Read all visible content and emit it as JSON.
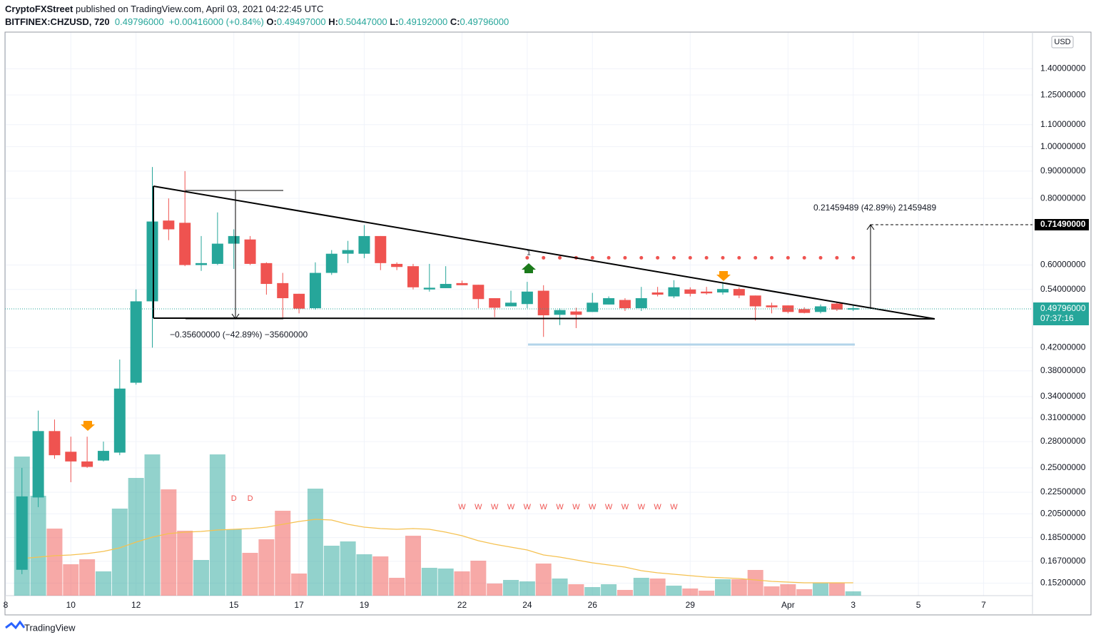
{
  "header": {
    "publisher": "CryptoFXStreet",
    "published": "published on TradingView.com, April 03, 2021 04:22:45 UTC",
    "symbol": "BITFINEX:CHZUSD, 720",
    "last": "0.49796000",
    "change": "+0.00416000 (+0.84%)",
    "o_label": "O:",
    "o": "0.49497000",
    "h_label": "H:",
    "h": "0.50447000",
    "l_label": "L:",
    "l": "0.49192000",
    "c_label": "C:",
    "c": "0.49796000"
  },
  "currency": "USD",
  "price_tags": {
    "target": "0.71490000",
    "last": "0.49796000",
    "countdown": "07:37:16"
  },
  "measures": {
    "down": "−0.35600000 (−42.89%) −35600000",
    "up": "0.21459489 (42.89%) 21459489"
  },
  "signals": {
    "d_labels": [
      "D",
      "D"
    ],
    "w_labels": [
      "W",
      "W",
      "W",
      "W",
      "W",
      "W",
      "W",
      "W",
      "W",
      "W",
      "W",
      "W",
      "W",
      "W"
    ],
    "dot_label": "1"
  },
  "footer": "TradingView",
  "chart_data": {
    "type": "candlestick",
    "x": [
      8.5,
      9,
      9.5,
      10,
      10.5,
      11,
      11.5,
      12,
      12.5,
      13,
      13.5,
      14,
      14.5,
      15,
      15.5,
      16,
      16.5,
      17,
      17.5,
      18,
      18.5,
      19,
      19.5,
      20,
      20.5,
      21,
      21.5,
      22,
      22.5,
      23,
      23.5,
      24,
      24.5,
      25,
      25.5,
      26,
      26.5,
      27,
      27.5,
      28,
      28.5,
      29,
      29.5,
      30,
      30.5,
      31,
      31.5,
      32,
      32.5,
      33,
      33.5,
      34
    ],
    "open": [
      0.161,
      0.22,
      0.293,
      0.268,
      0.257,
      0.258,
      0.267,
      0.361,
      0.513,
      0.727,
      0.72,
      0.6,
      0.603,
      0.658,
      0.67,
      0.605,
      0.555,
      0.53,
      0.498,
      0.58,
      0.63,
      0.63,
      0.68,
      0.603,
      0.597,
      0.54,
      0.543,
      0.555,
      0.551,
      0.52,
      0.502,
      0.507,
      0.537,
      0.484,
      0.491,
      0.49,
      0.506,
      0.516,
      0.498,
      0.533,
      0.524,
      0.54,
      0.535,
      0.533,
      0.541,
      0.526,
      0.504,
      0.504,
      0.496,
      0.49,
      0.508,
      0.49497
    ],
    "high": [
      0.25,
      0.32,
      0.308,
      0.286,
      0.286,
      0.28,
      0.399,
      0.54,
      0.916,
      0.8,
      0.9,
      0.68,
      0.753,
      0.7,
      0.68,
      0.607,
      0.58,
      0.53,
      0.607,
      0.64,
      0.666,
      0.713,
      0.68,
      0.607,
      0.603,
      0.603,
      0.597,
      0.561,
      0.551,
      0.52,
      0.537,
      0.558,
      0.55,
      0.498,
      0.499,
      0.532,
      0.524,
      0.52,
      0.546,
      0.546,
      0.562,
      0.545,
      0.546,
      0.558,
      0.545,
      0.526,
      0.51,
      0.504,
      0.5,
      0.506,
      0.511,
      0.50447
    ],
    "low": [
      0.158,
      0.211,
      0.26,
      0.235,
      0.25,
      0.257,
      0.264,
      0.358,
      0.42,
      0.668,
      0.597,
      0.585,
      0.6,
      0.59,
      0.6,
      0.528,
      0.478,
      0.487,
      0.495,
      0.575,
      0.605,
      0.618,
      0.587,
      0.587,
      0.54,
      0.535,
      0.543,
      0.55,
      0.498,
      0.479,
      0.502,
      0.498,
      0.44,
      0.463,
      0.457,
      0.49,
      0.506,
      0.492,
      0.492,
      0.524,
      0.52,
      0.524,
      0.528,
      0.528,
      0.52,
      0.472,
      0.487,
      0.487,
      0.487,
      0.487,
      0.492,
      0.49192
    ],
    "close": [
      0.221,
      0.293,
      0.264,
      0.257,
      0.251,
      0.269,
      0.352,
      0.513,
      0.724,
      0.7,
      0.6,
      0.605,
      0.658,
      0.68,
      0.603,
      0.553,
      0.52,
      0.497,
      0.58,
      0.63,
      0.64,
      0.68,
      0.605,
      0.595,
      0.545,
      0.544,
      0.553,
      0.55,
      0.518,
      0.499,
      0.51,
      0.535,
      0.483,
      0.494,
      0.484,
      0.51,
      0.52,
      0.498,
      0.52,
      0.528,
      0.545,
      0.53,
      0.531,
      0.541,
      0.526,
      0.502,
      0.5,
      0.49,
      0.488,
      0.502,
      0.495,
      0.49796
    ],
    "up_color": "#26a69a",
    "down_color": "#ef5350",
    "volume": {
      "values": [
        195,
        140,
        94,
        44,
        51,
        34,
        122,
        165,
        198,
        149,
        91,
        50,
        198,
        93,
        60,
        79,
        119,
        31,
        150,
        70,
        76,
        58,
        55,
        25,
        84,
        39,
        38,
        34,
        49,
        17,
        22,
        20,
        45,
        24,
        16,
        12,
        16,
        8,
        25,
        24,
        14,
        10,
        7,
        23,
        23,
        36,
        13,
        16,
        9,
        18,
        18,
        6
      ],
      "up_color": "rgba(38,166,154,0.5)",
      "down_color": "rgba(239,83,80,0.5)"
    },
    "volume_ma": {
      "color": "#f5c150",
      "values": [
        52,
        54,
        56,
        57,
        59,
        62,
        67,
        75,
        82,
        87,
        89,
        90,
        92,
        93,
        94,
        96,
        100,
        104,
        107,
        106,
        100,
        96,
        94,
        93,
        94,
        93,
        89,
        84,
        77,
        72,
        68,
        64,
        57,
        54,
        50,
        46,
        43,
        40,
        35,
        32,
        30,
        28,
        26,
        25,
        24,
        22,
        20,
        19,
        18,
        18,
        18,
        18
      ]
    },
    "dots": {
      "color": "#ef5350",
      "x": [
        24,
        24.5,
        25,
        25.5,
        26,
        26.5,
        27,
        27.5,
        28,
        28.5,
        29,
        29.5,
        30,
        30.5,
        31,
        31.5,
        32,
        32.5,
        33,
        33.5,
        34
      ],
      "values": [
        0.619,
        0.619,
        0.619,
        0.619,
        0.619,
        0.619,
        0.619,
        0.619,
        0.619,
        0.619,
        0.619,
        0.619,
        0.619,
        0.619,
        0.619,
        0.619,
        0.619,
        0.619,
        0.619,
        0.619,
        0.619
      ]
    },
    "log_scale": true,
    "grid": true,
    "ylim": [
      0.144,
      1.64
    ],
    "yticks": [
      {
        "value": 1.4,
        "label": "1.40000000"
      },
      {
        "value": 1.25,
        "label": "1.25000000"
      },
      {
        "value": 1.1,
        "label": "1.10000000"
      },
      {
        "value": 1.0,
        "label": "1.00000000"
      },
      {
        "value": 0.9,
        "label": "0.90000000"
      },
      {
        "value": 0.8,
        "label": "0.80000000"
      },
      {
        "value": 0.6,
        "label": "0.60000000"
      },
      {
        "value": 0.54,
        "label": "0.54000000"
      },
      {
        "value": 0.42,
        "label": "0.42000000"
      },
      {
        "value": 0.38,
        "label": "0.38000000"
      },
      {
        "value": 0.34,
        "label": "0.34000000"
      },
      {
        "value": 0.31,
        "label": "0.31000000"
      },
      {
        "value": 0.28,
        "label": "0.28000000"
      },
      {
        "value": 0.25,
        "label": "0.25000000"
      },
      {
        "value": 0.225,
        "label": "0.22500000"
      },
      {
        "value": 0.205,
        "label": "0.20500000"
      },
      {
        "value": 0.185,
        "label": "0.18500000"
      },
      {
        "value": 0.167,
        "label": "0.16700000"
      },
      {
        "value": 0.152,
        "label": "0.15200000"
      }
    ],
    "xlim": [
      7.98,
      39.5
    ],
    "xticks": [
      8,
      10,
      12,
      15,
      17,
      19,
      22,
      24,
      26,
      29,
      {
        "value": 32,
        "label": "Apr"
      },
      {
        "value": 34,
        "label": "3"
      },
      {
        "value": 36,
        "label": "5"
      },
      {
        "value": 38,
        "label": "7"
      }
    ]
  }
}
